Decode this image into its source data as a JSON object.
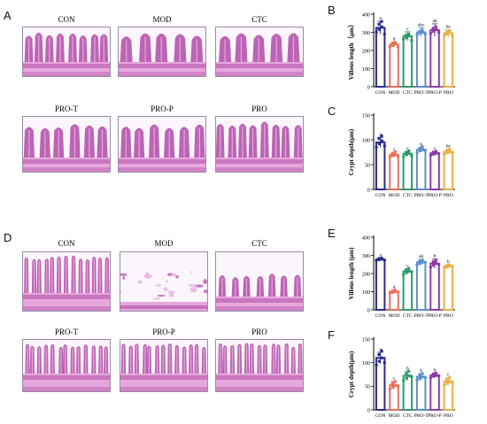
{
  "panels": {
    "A": "A",
    "B": "B",
    "C": "C",
    "D": "D",
    "E": "E",
    "F": "F"
  },
  "histology_top": [
    "CON",
    "MOD",
    "CTC",
    "PRO-T",
    "PRO-P",
    "PRO"
  ],
  "histology_bottom": [
    "CON",
    "MOD",
    "CTC",
    "PRO-T",
    "PRO-P",
    "PRO"
  ],
  "colors": {
    "CON": "#2a2a8c",
    "MOD": "#e8705a",
    "CTC": "#2e9a6a",
    "PRO-T": "#5a8fd0",
    "PRO-P": "#8a3aa8",
    "PRO": "#e8b048",
    "tissue": "#b04aa8",
    "tissue_light": "#e6a8dc",
    "background": "#fbf6fb"
  },
  "chart_data": [
    {
      "type": "bar",
      "panel": "B",
      "categories": [
        "CON",
        "MOD",
        "CTC",
        "PRO-T",
        "PRO-P",
        "PRO"
      ],
      "values": [
        325,
        232,
        278,
        300,
        312,
        295
      ],
      "errors": [
        35,
        15,
        25,
        25,
        35,
        20
      ],
      "letters": [
        "a",
        "d",
        "c",
        "abc",
        "ab",
        "bc"
      ],
      "ylabel": "Villous length（μm）",
      "ylim": [
        0,
        400
      ],
      "yticks": [
        0,
        100,
        200,
        300,
        400
      ],
      "points": [
        [
          300,
          315,
          330,
          345,
          360,
          290
        ],
        [
          220,
          228,
          235,
          240,
          245,
          218
        ],
        [
          262,
          270,
          280,
          285,
          290,
          255
        ],
        [
          285,
          295,
          300,
          305,
          312,
          290
        ],
        [
          295,
          305,
          315,
          322,
          330,
          300
        ],
        [
          285,
          290,
          298,
          302,
          308,
          280
        ]
      ]
    },
    {
      "type": "bar",
      "panel": "C",
      "categories": [
        "CON",
        "MOD",
        "CTC",
        "PRO-T",
        "PRO-P",
        "PRO"
      ],
      "values": [
        95,
        70,
        72,
        80,
        73,
        76
      ],
      "errors": [
        10,
        5,
        5,
        5,
        4,
        5
      ],
      "letters": [
        "a",
        "c",
        "c",
        "b",
        "c",
        "bc"
      ],
      "ylabel": "Crypt depth(μm)",
      "ylim": [
        0,
        150
      ],
      "yticks": [
        0,
        50,
        100,
        150
      ],
      "points": [
        [
          85,
          92,
          98,
          103,
          108,
          88
        ],
        [
          65,
          68,
          70,
          73,
          76,
          67
        ],
        [
          66,
          70,
          73,
          75,
          78,
          68
        ],
        [
          74,
          78,
          80,
          83,
          86,
          79
        ],
        [
          69,
          71,
          73,
          75,
          77,
          72
        ],
        [
          71,
          74,
          76,
          79,
          81,
          75
        ]
      ]
    },
    {
      "type": "bar",
      "panel": "E",
      "categories": [
        "CON",
        "MOD",
        "CTC",
        "PRO-T",
        "PRO-P",
        "PRO"
      ],
      "values": [
        278,
        100,
        212,
        262,
        255,
        240
      ],
      "errors": [
        8,
        8,
        15,
        15,
        25,
        10
      ],
      "letters": [
        "a",
        "d",
        "c",
        "ab",
        "b",
        "b"
      ],
      "ylabel": "Villous length (μm)",
      "ylim": [
        0,
        400
      ],
      "yticks": [
        0,
        100,
        200,
        300,
        400
      ],
      "points": [
        [
          272,
          276,
          279,
          282,
          285,
          274
        ],
        [
          92,
          96,
          100,
          104,
          108,
          98
        ],
        [
          195,
          205,
          212,
          220,
          228,
          210
        ],
        [
          248,
          255,
          262,
          268,
          275,
          262
        ],
        [
          235,
          245,
          255,
          265,
          272,
          250
        ],
        [
          232,
          236,
          240,
          244,
          248,
          240
        ]
      ]
    },
    {
      "type": "bar",
      "panel": "F",
      "categories": [
        "CON",
        "MOD",
        "CTC",
        "PRO-T",
        "PRO-P",
        "PRO"
      ],
      "values": [
        110,
        52,
        72,
        70,
        73,
        60
      ],
      "errors": [
        12,
        8,
        10,
        7,
        5,
        8
      ],
      "letters": [
        "a",
        "c",
        "b",
        "b",
        "b",
        "c"
      ],
      "ylabel": "Crypt depth(μm)",
      "ylim": [
        0,
        150
      ],
      "yticks": [
        0,
        50,
        100,
        150
      ],
      "points": [
        [
          95,
          103,
          110,
          117,
          125,
          100
        ],
        [
          44,
          48,
          52,
          56,
          60,
          50
        ],
        [
          62,
          67,
          72,
          77,
          82,
          70
        ],
        [
          63,
          66,
          70,
          74,
          77,
          68
        ],
        [
          68,
          71,
          73,
          75,
          78,
          72
        ],
        [
          52,
          56,
          60,
          64,
          68,
          58
        ]
      ]
    }
  ]
}
